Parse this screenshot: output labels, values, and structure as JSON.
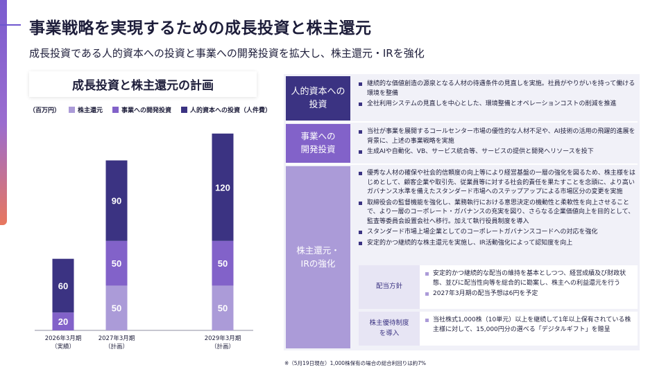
{
  "title": "事業戦略を実現するための成長投資と株主還元",
  "subtitle": "成長投資である人的資本への投資と事業への開発投資を拡大し、株主還元・IRを強化",
  "colors": {
    "accent": "#6e56cf",
    "human_capital": "#3b3382",
    "development": "#8262c9",
    "shareholder_return": "#ab9bd8"
  },
  "chart_panel": {
    "title": "成長投資と株主還元の計画",
    "unit": "（百万円）"
  },
  "chart_data": {
    "type": "bar",
    "stacked": true,
    "categories": [
      "2026年3月期",
      "2027年3月期",
      "2029年3月期"
    ],
    "category_notes": [
      "（実績）",
      "（計画）",
      "（計画）"
    ],
    "series": [
      {
        "name": "株主還元",
        "color": "#ab9bd8",
        "values": [
          0,
          50,
          50
        ]
      },
      {
        "name": "事業への開発投資",
        "color": "#8262c9",
        "values": [
          20,
          50,
          50
        ]
      },
      {
        "name": "人的資本への投資（人件費）",
        "color": "#3b3382",
        "values": [
          60,
          90,
          120
        ]
      }
    ],
    "ylim": [
      0,
      220
    ],
    "legend": "top",
    "grid": false
  },
  "right_panel": {
    "categories": [
      {
        "label": "人的資本への\n投資",
        "bullets": [
          "継続的な価値創造の源泉となる人材の待遇条件の見直しを実施。社員がやりがいを持って働ける環境を整備",
          "全社利用システムの見直しを中心とした、環境整備とオペレーションコストの削減を推進"
        ]
      },
      {
        "label": "事業への\n開発投資",
        "bullets": [
          "当社が事業を展開するコールセンター市場の優性的な人材不足や、AI技術の活用の飛躍的進展を背景に、上述の事業戦略を実施",
          "生成AIや自動化、VB、サービス統合等、サービスの提供と開発へリソースを投下"
        ]
      },
      {
        "label": "株主還元・\nIRの強化",
        "bullets": [
          "優秀な人材の確保や社会的信頼度の向上等により経営基盤の一層の強化を図るため、株主様をはじめとして、顧客企業や取引先、従業員等に対する社会的責任を果たすことを念頭に、より高いガバナンス水準を備えたスタンダード市場へのステップアップによる市場区分の変更を実施",
          "取締役会の監督機能を強化し、業務執行における意思決定の機動性と柔軟性を向上させることで、より一層のコーポレート・ガバナンスの充実を図り、さらなる企業価値向上を目的として、監査等委員会設置会社へ移行。加えて執行役員制度を導入",
          "スタンダード市場上場企業としてのコーポレートガバナンスコードへの対応を強化",
          "安定的かつ継続的な株主還元を実施し、IR活動強化によって認知度を向上"
        ],
        "sub_boxes": [
          {
            "label": "配当方針",
            "bullets": [
              "安定的かつ継続的な配当の維持を基本としつつ、経営成績及び財政状態、並びに配当性向等を総合的に勘案し、株主への利益還元を行う",
              "2027年3月期の配当予想は6円を予定"
            ]
          },
          {
            "label": "株主優待制度\nを導入",
            "bullets": [
              "当社株式1,000株（10単元）以上を継続して1年以上保有されている株主様に対して、15,000円分の選べる「デジタルギフト」を贈呈"
            ]
          }
        ]
      }
    ]
  },
  "footnote": "※（5月19日現在）1,000株保有の場合の総合利回りは約7%"
}
